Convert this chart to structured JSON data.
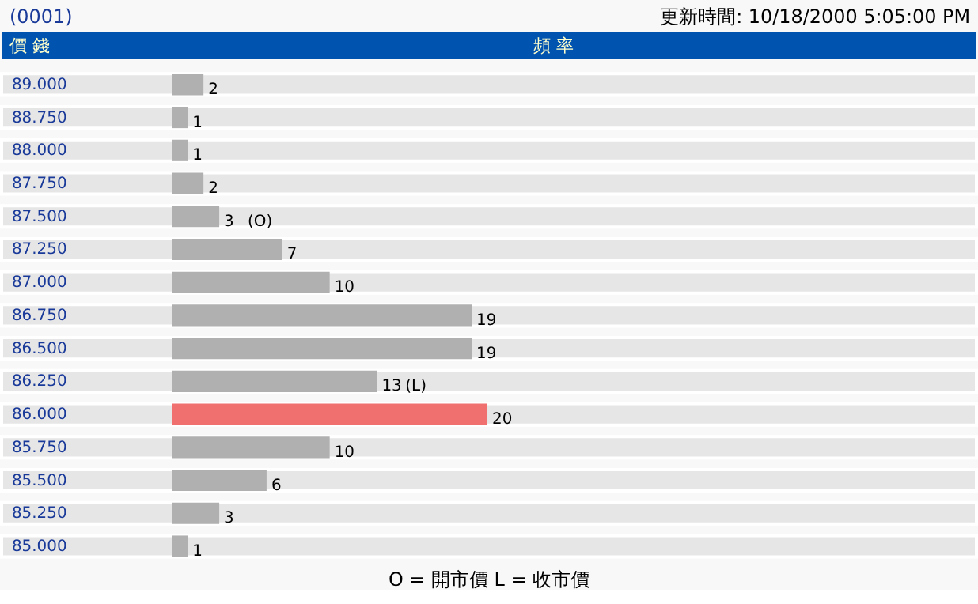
{
  "chart_data": {
    "type": "bar",
    "orientation": "horizontal",
    "title": "(0001)",
    "subtitle": "更新時間: 10/18/2000 5:05:00 PM",
    "ylabel": "價 錢",
    "xlabel": "頻 率",
    "categories": [
      "89.000",
      "88.750",
      "88.000",
      "87.750",
      "87.500",
      "87.250",
      "87.000",
      "86.750",
      "86.500",
      "86.250",
      "86.000",
      "85.750",
      "85.500",
      "85.250",
      "85.000"
    ],
    "values": [
      2,
      1,
      1,
      2,
      3,
      7,
      10,
      19,
      19,
      13,
      20,
      10,
      6,
      3,
      1
    ],
    "colors": [
      "#b0b0b0",
      "#b0b0b0",
      "#b0b0b0",
      "#b0b0b0",
      "#b0b0b0",
      "#b0b0b0",
      "#b0b0b0",
      "#b0b0b0",
      "#b0b0b0",
      "#b0b0b0",
      "#f07070",
      "#b0b0b0",
      "#b0b0b0",
      "#b0b0b0",
      "#b0b0b0"
    ],
    "data_labels": true,
    "grid": false,
    "annotations": [
      {
        "text": "(O)",
        "x": 3,
        "y": "87.500"
      },
      {
        "text": "(L)",
        "x": 13,
        "y": "86.250"
      },
      "O = 開市價   L = 收市價"
    ]
  }
}
